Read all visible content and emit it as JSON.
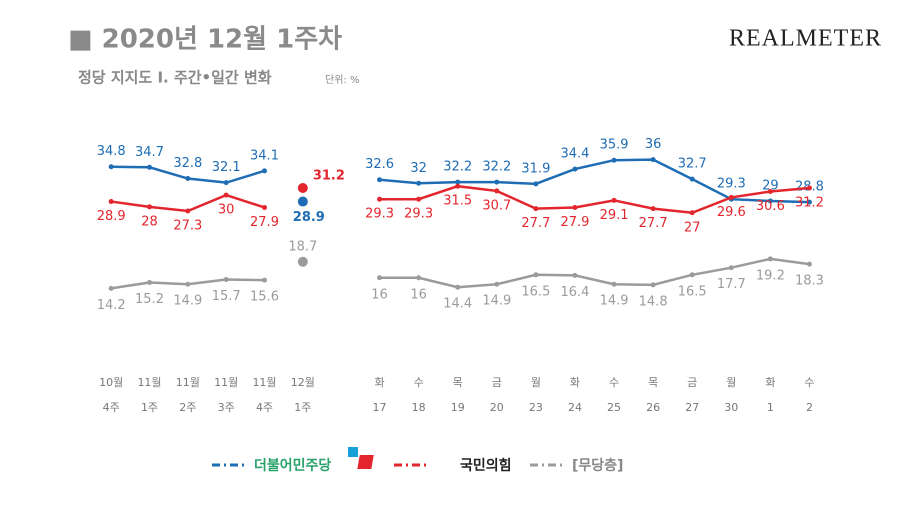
{
  "header": {
    "title": "■ 2020년 12월 1주차",
    "subtitle": "정당 지지도 Ⅰ. 주간•일간 변화",
    "unit": "단위: %",
    "brand": "REALMETER"
  },
  "chart_data": [
    {
      "type": "line",
      "categories": [
        "10월",
        "11월",
        "11월",
        "11월",
        "11월",
        "12월"
      ],
      "sublabels": [
        "4주",
        "1주",
        "2주",
        "3주",
        "4주",
        "1주"
      ],
      "ylim": [
        8,
        40
      ],
      "series": [
        {
          "name": "더불어민주당",
          "color": "#1f6db4",
          "values": [
            34.8,
            34.7,
            32.8,
            32.1,
            34.1,
            28.9
          ]
        },
        {
          "name": "국민의힘",
          "color": "#e3262e",
          "values": [
            28.9,
            28.0,
            27.3,
            30.0,
            27.9,
            31.2
          ]
        },
        {
          "name": "[무당층]",
          "color": "#9b9b9b",
          "values": [
            14.2,
            15.2,
            14.9,
            15.7,
            15.6,
            18.7
          ]
        }
      ]
    },
    {
      "type": "line",
      "categories": [
        "화",
        "수",
        "목",
        "금",
        "월",
        "화",
        "수",
        "목",
        "금",
        "월",
        "화",
        "수"
      ],
      "sublabels": [
        17,
        18,
        19,
        20,
        23,
        24,
        25,
        26,
        27,
        30,
        1,
        2
      ],
      "ylim": [
        8,
        40
      ],
      "series": [
        {
          "name": "더불어민주당",
          "color": "#1f6db4",
          "values": [
            32.6,
            32.0,
            32.2,
            32.2,
            31.9,
            34.4,
            35.9,
            36.0,
            32.7,
            29.3,
            29.0,
            28.8
          ]
        },
        {
          "name": "국민의힘",
          "color": "#e3262e",
          "values": [
            29.3,
            29.3,
            31.5,
            30.7,
            27.7,
            27.9,
            29.1,
            27.7,
            27.0,
            29.6,
            30.6,
            31.2
          ]
        },
        {
          "name": "[무당층]",
          "color": "#9b9b9b",
          "values": [
            16.0,
            16.0,
            14.4,
            14.9,
            16.5,
            16.4,
            14.9,
            14.8,
            16.5,
            17.7,
            19.2,
            18.3
          ]
        }
      ]
    }
  ]
}
